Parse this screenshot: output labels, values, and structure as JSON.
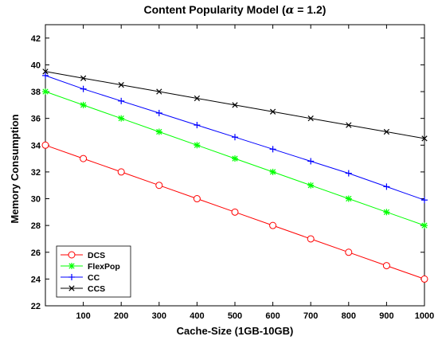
{
  "chart_data": {
    "type": "line",
    "title": "Content Popularity Model (",
    "title_symbol": "α",
    "title_suffix": " = 1.2)",
    "xlabel": "Cache-Size (1GB-10GB)",
    "ylabel": "Memory Consumption",
    "x": [
      0,
      100,
      200,
      300,
      400,
      500,
      600,
      700,
      800,
      900,
      1000
    ],
    "xlim": [
      0,
      1000
    ],
    "ylim": [
      22,
      43
    ],
    "xticks": [
      100,
      200,
      300,
      400,
      500,
      600,
      700,
      800,
      900,
      1000
    ],
    "yticks": [
      22,
      24,
      26,
      28,
      30,
      32,
      34,
      36,
      38,
      40,
      42
    ],
    "grid": false,
    "legend_position": "bottom-left",
    "series": [
      {
        "name": "DCS",
        "color": "#ff0000",
        "marker": "circle",
        "values": [
          34,
          33,
          32,
          31,
          30,
          29,
          28,
          27,
          26,
          25,
          24
        ]
      },
      {
        "name": "FlexPop",
        "color": "#00ff00",
        "marker": "asterisk",
        "values": [
          38,
          37,
          36,
          35,
          34,
          33,
          32,
          31,
          30,
          29,
          28
        ]
      },
      {
        "name": "CC",
        "color": "#0000ff",
        "marker": "plus",
        "values": [
          39.2,
          38.2,
          37.3,
          36.4,
          35.5,
          34.6,
          33.7,
          32.8,
          31.9,
          30.9,
          29.9
        ]
      },
      {
        "name": "CCS",
        "color": "#000000",
        "marker": "x",
        "values": [
          39.5,
          39.0,
          38.5,
          38.0,
          37.5,
          37.0,
          36.5,
          36.0,
          35.5,
          35.0,
          34.5
        ]
      }
    ]
  }
}
